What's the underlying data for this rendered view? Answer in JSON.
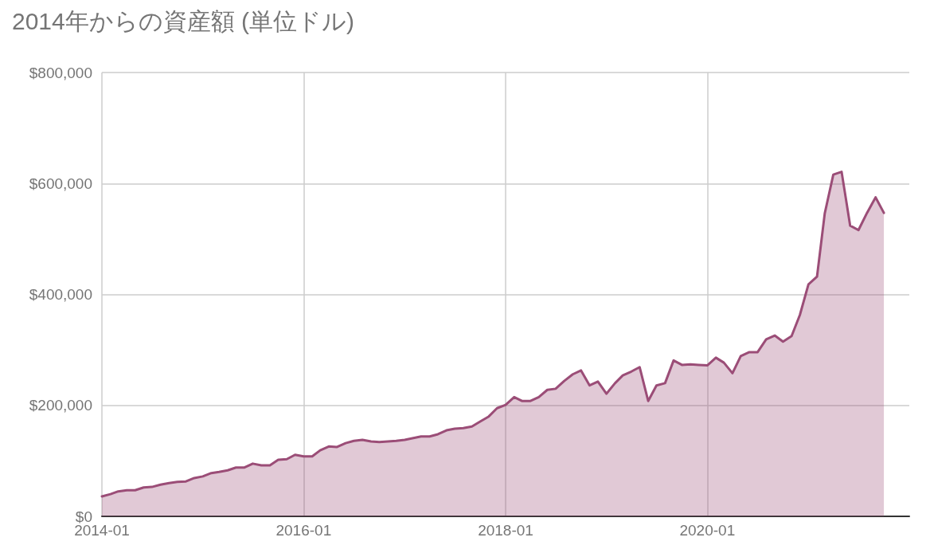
{
  "chart_data": {
    "type": "area",
    "title": "2014年からの資産額 (単位ドル)",
    "x": [
      "2014-01",
      "2014-02",
      "2014-03",
      "2014-04",
      "2014-05",
      "2014-06",
      "2014-07",
      "2014-08",
      "2014-09",
      "2014-10",
      "2014-11",
      "2014-12",
      "2015-01",
      "2015-02",
      "2015-03",
      "2015-04",
      "2015-05",
      "2015-06",
      "2015-07",
      "2015-08",
      "2015-09",
      "2015-10",
      "2015-11",
      "2015-12",
      "2016-01",
      "2016-02",
      "2016-03",
      "2016-04",
      "2016-05",
      "2016-06",
      "2016-07",
      "2016-08",
      "2016-09",
      "2016-10",
      "2016-11",
      "2016-12",
      "2017-01",
      "2017-02",
      "2017-03",
      "2017-04",
      "2017-05",
      "2017-06",
      "2017-07",
      "2017-08",
      "2017-09",
      "2017-10",
      "2017-11",
      "2017-12",
      "2018-01",
      "2018-02",
      "2018-03",
      "2018-04",
      "2018-05",
      "2018-06",
      "2018-07",
      "2018-08",
      "2018-09",
      "2018-10",
      "2018-11",
      "2018-12",
      "2019-01",
      "2019-02",
      "2019-03",
      "2019-04",
      "2019-05",
      "2019-06",
      "2019-07",
      "2019-08",
      "2019-09",
      "2019-10",
      "2019-11",
      "2019-12",
      "2020-01",
      "2020-02",
      "2020-03",
      "2020-04",
      "2020-05",
      "2020-06",
      "2020-07",
      "2020-08",
      "2020-09",
      "2020-10",
      "2020-11",
      "2020-12",
      "2021-01",
      "2021-02",
      "2021-03",
      "2021-04",
      "2021-05",
      "2021-06",
      "2021-07",
      "2021-08",
      "2021-09",
      "2021-10"
    ],
    "series": [
      {
        "color": "#9b4d77",
        "values": [
          36000,
          40000,
          45000,
          47000,
          47000,
          52000,
          53000,
          57000,
          60000,
          62000,
          63000,
          69000,
          72000,
          78000,
          80000,
          83000,
          88000,
          88000,
          95000,
          92000,
          92000,
          102000,
          103000,
          111000,
          108000,
          108000,
          119000,
          126000,
          125000,
          132000,
          136000,
          138000,
          135000,
          134000,
          135000,
          136000,
          138000,
          141000,
          144000,
          144000,
          148000,
          155000,
          158000,
          159000,
          162000,
          171000,
          180000,
          195000,
          201000,
          215000,
          208000,
          208000,
          215000,
          228000,
          230000,
          244000,
          256000,
          263000,
          236000,
          243000,
          221000,
          240000,
          254000,
          261000,
          269000,
          208000,
          236000,
          240000,
          281000,
          273000,
          274000,
          273000,
          272000,
          286000,
          277000,
          258000,
          289000,
          296000,
          296000,
          319000,
          326000,
          315000,
          325000,
          363000,
          418000,
          432000,
          546000,
          616000,
          621000,
          524000,
          516000,
          547000,
          575000,
          547000
        ]
      }
    ],
    "xlim": [
      "2014-01",
      "2022-01"
    ],
    "xticks": [
      "2014-01",
      "2016-01",
      "2018-01",
      "2020-01"
    ],
    "ylim": [
      0,
      800000
    ],
    "yticks": [
      {
        "value": 0,
        "label": "$0"
      },
      {
        "value": 200000,
        "label": "$200,000"
      },
      {
        "value": 400000,
        "label": "$400,000"
      },
      {
        "value": 600000,
        "label": "$600,000"
      },
      {
        "value": 800000,
        "label": "$800,000"
      }
    ],
    "grid": true,
    "marker": "none",
    "line_style": "solid"
  }
}
